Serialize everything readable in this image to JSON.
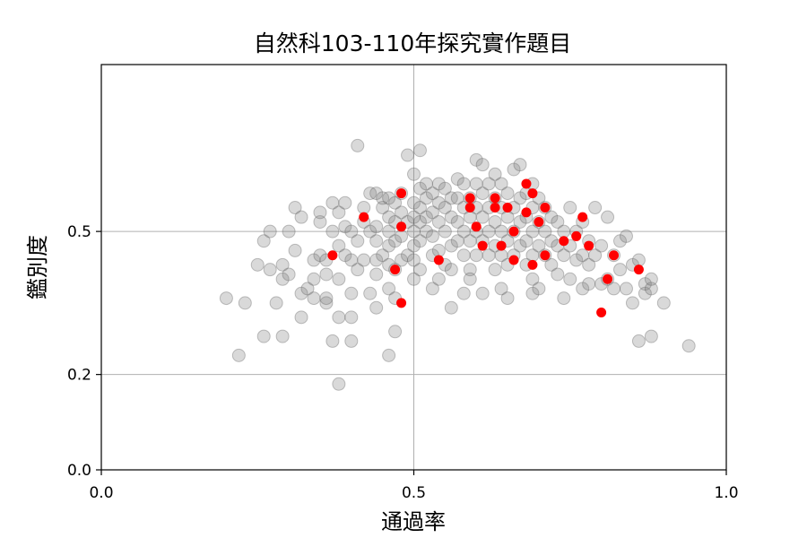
{
  "chart_data": {
    "type": "scatter",
    "title": "自然科103-110年探究實作題目",
    "xlabel": "通過率",
    "ylabel": "鑑別度",
    "xlim": [
      0.0,
      1.0
    ],
    "ylim": [
      0.0,
      0.85
    ],
    "xticks": [
      {
        "value": 0.0,
        "label": "0.0"
      },
      {
        "value": 0.5,
        "label": "0.5"
      },
      {
        "value": 1.0,
        "label": "1.0"
      }
    ],
    "yticks": [
      {
        "value": 0.0,
        "label": "0.0"
      },
      {
        "value": 0.2,
        "label": "0.2"
      },
      {
        "value": 0.5,
        "label": "0.5"
      }
    ],
    "grid": true,
    "colors": {
      "background_series": "#808080",
      "highlight_series": "#ff0000"
    },
    "series": [
      {
        "color": "#808080",
        "opacity": 0.3,
        "points": [
          [
            0.2,
            0.36
          ],
          [
            0.23,
            0.35
          ],
          [
            0.22,
            0.24
          ],
          [
            0.26,
            0.28
          ],
          [
            0.25,
            0.43
          ],
          [
            0.26,
            0.48
          ],
          [
            0.27,
            0.5
          ],
          [
            0.27,
            0.42
          ],
          [
            0.28,
            0.35
          ],
          [
            0.29,
            0.43
          ],
          [
            0.29,
            0.28
          ],
          [
            0.29,
            0.4
          ],
          [
            0.3,
            0.5
          ],
          [
            0.3,
            0.41
          ],
          [
            0.31,
            0.46
          ],
          [
            0.31,
            0.55
          ],
          [
            0.32,
            0.53
          ],
          [
            0.32,
            0.37
          ],
          [
            0.32,
            0.32
          ],
          [
            0.33,
            0.38
          ],
          [
            0.34,
            0.4
          ],
          [
            0.34,
            0.44
          ],
          [
            0.34,
            0.36
          ],
          [
            0.35,
            0.45
          ],
          [
            0.35,
            0.52
          ],
          [
            0.36,
            0.41
          ],
          [
            0.36,
            0.35
          ],
          [
            0.35,
            0.54
          ],
          [
            0.36,
            0.36
          ],
          [
            0.36,
            0.44
          ],
          [
            0.37,
            0.5
          ],
          [
            0.37,
            0.56
          ],
          [
            0.37,
            0.27
          ],
          [
            0.38,
            0.18
          ],
          [
            0.38,
            0.32
          ],
          [
            0.38,
            0.4
          ],
          [
            0.38,
            0.47
          ],
          [
            0.38,
            0.54
          ],
          [
            0.39,
            0.45
          ],
          [
            0.39,
            0.51
          ],
          [
            0.39,
            0.56
          ],
          [
            0.4,
            0.44
          ],
          [
            0.4,
            0.37
          ],
          [
            0.4,
            0.32
          ],
          [
            0.4,
            0.27
          ],
          [
            0.4,
            0.5
          ],
          [
            0.41,
            0.68
          ],
          [
            0.41,
            0.48
          ],
          [
            0.41,
            0.42
          ],
          [
            0.42,
            0.44
          ],
          [
            0.42,
            0.52
          ],
          [
            0.42,
            0.55
          ],
          [
            0.43,
            0.5
          ],
          [
            0.43,
            0.58
          ],
          [
            0.43,
            0.37
          ],
          [
            0.44,
            0.41
          ],
          [
            0.44,
            0.44
          ],
          [
            0.44,
            0.48
          ],
          [
            0.44,
            0.51
          ],
          [
            0.44,
            0.58
          ],
          [
            0.44,
            0.34
          ],
          [
            0.45,
            0.45
          ],
          [
            0.45,
            0.55
          ],
          [
            0.45,
            0.57
          ],
          [
            0.46,
            0.24
          ],
          [
            0.46,
            0.38
          ],
          [
            0.46,
            0.43
          ],
          [
            0.46,
            0.47
          ],
          [
            0.46,
            0.5
          ],
          [
            0.46,
            0.53
          ],
          [
            0.46,
            0.57
          ],
          [
            0.47,
            0.29
          ],
          [
            0.47,
            0.36
          ],
          [
            0.47,
            0.42
          ],
          [
            0.47,
            0.48
          ],
          [
            0.47,
            0.52
          ],
          [
            0.47,
            0.56
          ],
          [
            0.48,
            0.49
          ],
          [
            0.48,
            0.54
          ],
          [
            0.48,
            0.44
          ],
          [
            0.48,
            0.58
          ],
          [
            0.49,
            0.66
          ],
          [
            0.49,
            0.45
          ],
          [
            0.49,
            0.52
          ],
          [
            0.5,
            0.4
          ],
          [
            0.5,
            0.44
          ],
          [
            0.5,
            0.47
          ],
          [
            0.5,
            0.5
          ],
          [
            0.5,
            0.53
          ],
          [
            0.5,
            0.56
          ],
          [
            0.5,
            0.62
          ],
          [
            0.51,
            0.42
          ],
          [
            0.51,
            0.48
          ],
          [
            0.51,
            0.52
          ],
          [
            0.51,
            0.55
          ],
          [
            0.51,
            0.59
          ],
          [
            0.51,
            0.67
          ],
          [
            0.52,
            0.5
          ],
          [
            0.52,
            0.53
          ],
          [
            0.52,
            0.57
          ],
          [
            0.52,
            0.6
          ],
          [
            0.53,
            0.38
          ],
          [
            0.53,
            0.45
          ],
          [
            0.53,
            0.49
          ],
          [
            0.53,
            0.54
          ],
          [
            0.53,
            0.58
          ],
          [
            0.54,
            0.4
          ],
          [
            0.54,
            0.46
          ],
          [
            0.54,
            0.52
          ],
          [
            0.54,
            0.56
          ],
          [
            0.54,
            0.6
          ],
          [
            0.55,
            0.43
          ],
          [
            0.55,
            0.5
          ],
          [
            0.55,
            0.55
          ],
          [
            0.55,
            0.59
          ],
          [
            0.56,
            0.42
          ],
          [
            0.56,
            0.47
          ],
          [
            0.56,
            0.53
          ],
          [
            0.56,
            0.57
          ],
          [
            0.56,
            0.34
          ],
          [
            0.57,
            0.48
          ],
          [
            0.57,
            0.52
          ],
          [
            0.57,
            0.57
          ],
          [
            0.57,
            0.61
          ],
          [
            0.58,
            0.37
          ],
          [
            0.58,
            0.45
          ],
          [
            0.58,
            0.5
          ],
          [
            0.58,
            0.55
          ],
          [
            0.58,
            0.6
          ],
          [
            0.59,
            0.42
          ],
          [
            0.59,
            0.48
          ],
          [
            0.59,
            0.53
          ],
          [
            0.59,
            0.57
          ],
          [
            0.59,
            0.4
          ],
          [
            0.6,
            0.45
          ],
          [
            0.6,
            0.5
          ],
          [
            0.6,
            0.55
          ],
          [
            0.6,
            0.6
          ],
          [
            0.6,
            0.65
          ],
          [
            0.61,
            0.37
          ],
          [
            0.61,
            0.48
          ],
          [
            0.61,
            0.53
          ],
          [
            0.61,
            0.58
          ],
          [
            0.61,
            0.64
          ],
          [
            0.62,
            0.45
          ],
          [
            0.62,
            0.5
          ],
          [
            0.62,
            0.55
          ],
          [
            0.62,
            0.6
          ],
          [
            0.63,
            0.42
          ],
          [
            0.63,
            0.47
          ],
          [
            0.63,
            0.52
          ],
          [
            0.63,
            0.57
          ],
          [
            0.63,
            0.62
          ],
          [
            0.64,
            0.45
          ],
          [
            0.64,
            0.5
          ],
          [
            0.64,
            0.55
          ],
          [
            0.64,
            0.6
          ],
          [
            0.64,
            0.38
          ],
          [
            0.65,
            0.43
          ],
          [
            0.65,
            0.48
          ],
          [
            0.65,
            0.53
          ],
          [
            0.65,
            0.58
          ],
          [
            0.65,
            0.36
          ],
          [
            0.66,
            0.45
          ],
          [
            0.66,
            0.5
          ],
          [
            0.66,
            0.55
          ],
          [
            0.66,
            0.63
          ],
          [
            0.67,
            0.47
          ],
          [
            0.67,
            0.52
          ],
          [
            0.67,
            0.57
          ],
          [
            0.67,
            0.64
          ],
          [
            0.68,
            0.43
          ],
          [
            0.68,
            0.48
          ],
          [
            0.68,
            0.53
          ],
          [
            0.68,
            0.58
          ],
          [
            0.69,
            0.4
          ],
          [
            0.69,
            0.45
          ],
          [
            0.69,
            0.5
          ],
          [
            0.69,
            0.55
          ],
          [
            0.69,
            0.6
          ],
          [
            0.69,
            0.37
          ],
          [
            0.7,
            0.47
          ],
          [
            0.7,
            0.52
          ],
          [
            0.7,
            0.57
          ],
          [
            0.7,
            0.38
          ],
          [
            0.71,
            0.45
          ],
          [
            0.71,
            0.5
          ],
          [
            0.71,
            0.55
          ],
          [
            0.72,
            0.43
          ],
          [
            0.72,
            0.48
          ],
          [
            0.72,
            0.53
          ],
          [
            0.73,
            0.41
          ],
          [
            0.73,
            0.47
          ],
          [
            0.73,
            0.52
          ],
          [
            0.74,
            0.36
          ],
          [
            0.74,
            0.45
          ],
          [
            0.74,
            0.5
          ],
          [
            0.75,
            0.4
          ],
          [
            0.75,
            0.47
          ],
          [
            0.75,
            0.55
          ],
          [
            0.76,
            0.44
          ],
          [
            0.76,
            0.5
          ],
          [
            0.77,
            0.38
          ],
          [
            0.77,
            0.45
          ],
          [
            0.77,
            0.52
          ],
          [
            0.78,
            0.39
          ],
          [
            0.78,
            0.43
          ],
          [
            0.78,
            0.48
          ],
          [
            0.79,
            0.45
          ],
          [
            0.79,
            0.55
          ],
          [
            0.8,
            0.39
          ],
          [
            0.8,
            0.47
          ],
          [
            0.81,
            0.53
          ],
          [
            0.81,
            0.4
          ],
          [
            0.82,
            0.38
          ],
          [
            0.82,
            0.45
          ],
          [
            0.83,
            0.42
          ],
          [
            0.83,
            0.48
          ],
          [
            0.84,
            0.38
          ],
          [
            0.84,
            0.49
          ],
          [
            0.85,
            0.35
          ],
          [
            0.85,
            0.43
          ],
          [
            0.86,
            0.27
          ],
          [
            0.86,
            0.44
          ],
          [
            0.87,
            0.37
          ],
          [
            0.87,
            0.39
          ],
          [
            0.88,
            0.28
          ],
          [
            0.88,
            0.38
          ],
          [
            0.88,
            0.4
          ],
          [
            0.9,
            0.35
          ],
          [
            0.94,
            0.26
          ]
        ]
      },
      {
        "color": "#ff0000",
        "opacity": 1.0,
        "points": [
          [
            0.37,
            0.45
          ],
          [
            0.42,
            0.53
          ],
          [
            0.47,
            0.42
          ],
          [
            0.48,
            0.58
          ],
          [
            0.48,
            0.51
          ],
          [
            0.48,
            0.35
          ],
          [
            0.54,
            0.44
          ],
          [
            0.59,
            0.57
          ],
          [
            0.59,
            0.55
          ],
          [
            0.6,
            0.51
          ],
          [
            0.61,
            0.47
          ],
          [
            0.63,
            0.57
          ],
          [
            0.63,
            0.55
          ],
          [
            0.64,
            0.47
          ],
          [
            0.65,
            0.55
          ],
          [
            0.66,
            0.5
          ],
          [
            0.66,
            0.44
          ],
          [
            0.68,
            0.6
          ],
          [
            0.68,
            0.54
          ],
          [
            0.69,
            0.58
          ],
          [
            0.69,
            0.43
          ],
          [
            0.7,
            0.52
          ],
          [
            0.71,
            0.55
          ],
          [
            0.71,
            0.45
          ],
          [
            0.74,
            0.48
          ],
          [
            0.76,
            0.49
          ],
          [
            0.77,
            0.53
          ],
          [
            0.78,
            0.47
          ],
          [
            0.8,
            0.33
          ],
          [
            0.81,
            0.4
          ],
          [
            0.82,
            0.45
          ],
          [
            0.86,
            0.42
          ]
        ]
      }
    ]
  }
}
